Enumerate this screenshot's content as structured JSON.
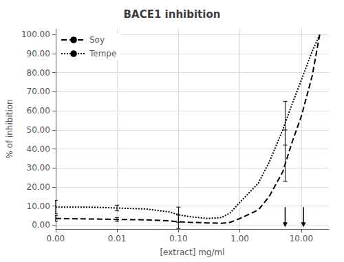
{
  "chart_data": {
    "type": "line",
    "title": "BACE1 inhibition",
    "xlabel": "[extract] mg/ml",
    "ylabel": "% of inhibition",
    "log": "x",
    "grid": true,
    "legend": "upper left",
    "xlim": [
      0.001,
      28.183829312644534
    ],
    "xticks": [
      {
        "value": 0.001,
        "label": "0.00"
      },
      {
        "value": 0.01,
        "label": "0.01"
      },
      {
        "value": 0.1,
        "label": "0.10"
      },
      {
        "value": 1.0,
        "label": "1.00"
      },
      {
        "value": 10.0,
        "label": "10.00"
      }
    ],
    "ylim": [
      -2.0,
      103.0
    ],
    "yticks": [
      {
        "value": 0.0,
        "label": "0.00"
      },
      {
        "value": 10.0,
        "label": "10.00"
      },
      {
        "value": 20.0,
        "label": "20.00"
      },
      {
        "value": 30.0,
        "label": "30.00"
      },
      {
        "value": 40.0,
        "label": "40.00"
      },
      {
        "value": 50.0,
        "label": "50.00"
      },
      {
        "value": 60.0,
        "label": "60.00"
      },
      {
        "value": 70.0,
        "label": "70.00"
      },
      {
        "value": 80.0,
        "label": "80.00"
      },
      {
        "value": 90.0,
        "label": "90.00"
      },
      {
        "value": 100.0,
        "label": "100.00"
      }
    ],
    "series": [
      {
        "name": "Soy",
        "color": "#000000",
        "line_style": "dashed",
        "x": [
          0.001,
          0.003,
          0.007,
          0.01,
          0.03,
          0.07,
          0.1,
          0.15,
          0.3,
          0.5,
          0.7,
          1.0,
          2.0,
          3.0,
          5.0,
          7.0,
          10.0,
          15.0,
          20.0
        ],
        "values": [
          3.5,
          3.3,
          3.1,
          3.0,
          2.8,
          2.3,
          1.8,
          1.5,
          1.2,
          1.0,
          1.5,
          3.5,
          8.0,
          15.0,
          28.0,
          43.0,
          57.0,
          78.0,
          100.0
        ],
        "error_bars": {
          "x": [
            0.001,
            0.01,
            0.1,
            5.47
          ],
          "y": [
            3.5,
            3.0,
            1.8,
            28.0
          ],
          "minus": [
            1.5,
            1.0,
            3.5,
            5.0
          ],
          "plus": [
            1.5,
            1.0,
            3.5,
            22.0
          ]
        }
      },
      {
        "name": "Tempe",
        "color": "#000000",
        "line_style": "dotted",
        "x": [
          0.001,
          0.003,
          0.007,
          0.01,
          0.03,
          0.07,
          0.1,
          0.15,
          0.3,
          0.5,
          0.7,
          1.0,
          2.0,
          3.0,
          5.0,
          7.0,
          10.0,
          15.0,
          20.0
        ],
        "values": [
          9.5,
          9.5,
          9.2,
          9.0,
          8.5,
          7.0,
          5.5,
          4.5,
          3.5,
          4.0,
          6.5,
          12.0,
          22.0,
          33.0,
          50.0,
          63.0,
          76.0,
          91.0,
          100.0
        ],
        "error_bars": {
          "x": [
            0.001,
            0.01,
            0.1,
            5.47
          ],
          "y": [
            9.5,
            9.0,
            5.5,
            50.0
          ],
          "minus": [
            3.5,
            1.5,
            4.0,
            8.0
          ],
          "plus": [
            3.5,
            1.5,
            4.0,
            15.0
          ]
        }
      }
    ],
    "arrows": [
      {
        "x": 5.47,
        "y_from": 9.5,
        "y_to": -1.0,
        "color": "#000000"
      },
      {
        "x": 10.87,
        "y_from": 9.5,
        "y_to": -1.0,
        "color": "#000000"
      }
    ]
  }
}
